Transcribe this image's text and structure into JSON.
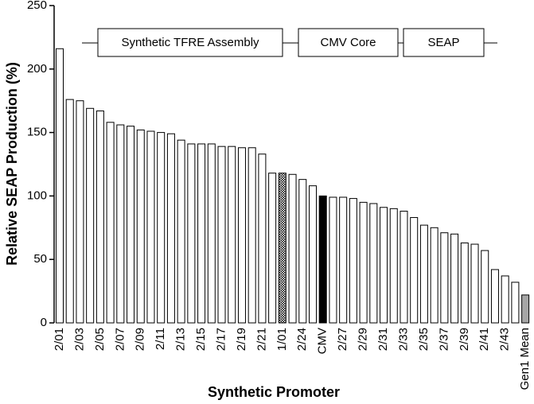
{
  "chart_data": {
    "type": "bar",
    "ylabel": "Relative SEAP Production (%)",
    "xlabel": "Synthetic Promoter",
    "annotations": [
      "Synthetic TFRE Assembly",
      "CMV Core",
      "SEAP"
    ],
    "categories": [
      "2/01",
      null,
      "2/03",
      null,
      "2/05",
      null,
      "2/07",
      null,
      "2/09",
      null,
      "2/11",
      null,
      "2/13",
      null,
      "2/15",
      null,
      "2/17",
      null,
      "2/19",
      null,
      "2/21",
      null,
      "1/01",
      null,
      "2/24",
      null,
      "CMV",
      null,
      "2/27",
      null,
      "2/29",
      null,
      "2/31",
      null,
      "2/33",
      null,
      "2/35",
      null,
      "2/37",
      null,
      "2/39",
      null,
      "2/41",
      null,
      "2/43",
      null,
      "Gen1 Mean"
    ],
    "values": [
      216,
      176,
      175,
      169,
      167,
      158,
      156,
      155,
      152,
      151,
      150,
      149,
      144,
      141,
      141,
      141,
      139,
      139,
      138,
      138,
      133,
      118,
      118,
      117,
      113,
      108,
      100,
      99,
      99,
      98,
      95,
      94,
      91,
      90,
      88,
      83,
      77,
      75,
      71,
      70,
      63,
      62,
      57,
      42,
      37,
      32,
      22
    ],
    "color": "#ffffff",
    "category_colors": {
      "CMV": "#000000",
      "Gen1 Mean": "#a6a6a6"
    },
    "checkered_categories": [
      "1/01"
    ],
    "ylim": [
      0,
      250
    ],
    "yticks": [
      0,
      50,
      100,
      150,
      200,
      250
    ]
  }
}
